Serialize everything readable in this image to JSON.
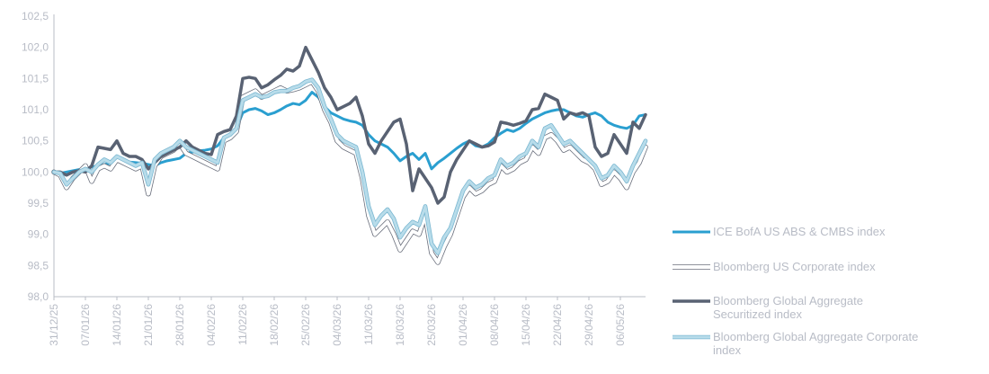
{
  "chart_data": {
    "type": "line",
    "title": "",
    "xlabel": "",
    "ylabel": "",
    "ylim": [
      98.0,
      102.5
    ],
    "yticks": [
      "98,0",
      "98,5",
      "99,0",
      "99,5",
      "100,0",
      "100,5",
      "101,0",
      "101,5",
      "102,0",
      "102,5"
    ],
    "yticks_values": [
      98.0,
      98.5,
      99.0,
      99.5,
      100.0,
      100.5,
      101.0,
      101.5,
      102.0,
      102.5
    ],
    "grid": false,
    "legend_position": "right",
    "x_tick_labels": [
      "31/12/25",
      "07/01/26",
      "14/01/26",
      "21/01/26",
      "28/01/26",
      "04/02/26",
      "11/02/26",
      "18/02/26",
      "25/02/26",
      "04/03/26",
      "11/03/26",
      "18/03/26",
      "25/03/26",
      "01/04/26",
      "08/04/26",
      "15/04/26",
      "22/04/26",
      "29/04/26",
      "06/05/26"
    ],
    "x_tick_positions": [
      0,
      5,
      10,
      15,
      20,
      25,
      30,
      35,
      40,
      45,
      50,
      55,
      60,
      65,
      70,
      75,
      80,
      85,
      90
    ],
    "x_count": 95,
    "series": [
      {
        "name": "ICE BofA US ABS & CMBS index",
        "color": "#2a9fd0",
        "outline": null,
        "width": 3,
        "values": [
          100.0,
          99.98,
          100.0,
          100.02,
          100.04,
          100.06,
          100.08,
          100.1,
          100.12,
          100.14,
          100.2,
          100.18,
          100.16,
          100.15,
          100.14,
          100.12,
          100.1,
          100.15,
          100.18,
          100.2,
          100.22,
          100.3,
          100.32,
          100.34,
          100.35,
          100.37,
          100.42,
          100.55,
          100.6,
          100.7,
          100.95,
          101.0,
          101.02,
          100.98,
          100.92,
          100.95,
          101.0,
          101.06,
          101.1,
          101.08,
          101.15,
          101.28,
          101.2,
          101.05,
          100.95,
          100.9,
          100.85,
          100.82,
          100.8,
          100.75,
          100.6,
          100.5,
          100.45,
          100.4,
          100.3,
          100.18,
          100.25,
          100.3,
          100.2,
          100.3,
          100.05,
          100.15,
          100.22,
          100.3,
          100.38,
          100.45,
          100.5,
          100.42,
          100.4,
          100.45,
          100.55,
          100.62,
          100.68,
          100.65,
          100.7,
          100.78,
          100.85,
          100.9,
          100.95,
          100.98,
          101.0,
          101.0,
          100.95,
          100.9,
          100.88,
          100.92,
          100.95,
          100.9,
          100.8,
          100.75,
          100.72,
          100.7,
          100.75,
          100.9,
          100.92
        ]
      },
      {
        "name": "Bloomberg US Corporate index",
        "color": "#ffffff",
        "outline": "#6a6f7c",
        "width": 4,
        "values": [
          100.0,
          99.95,
          99.75,
          99.9,
          100.0,
          100.1,
          99.85,
          100.05,
          100.1,
          100.05,
          100.2,
          100.15,
          100.1,
          100.05,
          100.1,
          99.65,
          100.1,
          100.25,
          100.3,
          100.35,
          100.45,
          100.3,
          100.25,
          100.2,
          100.15,
          100.1,
          100.05,
          100.5,
          100.55,
          100.65,
          101.2,
          101.25,
          101.3,
          101.2,
          101.25,
          101.3,
          101.35,
          101.3,
          101.32,
          101.35,
          101.4,
          101.45,
          101.3,
          101.0,
          100.8,
          100.5,
          100.4,
          100.35,
          100.3,
          99.9,
          99.3,
          99.0,
          99.1,
          99.2,
          99.0,
          98.75,
          98.9,
          99.05,
          99.0,
          99.3,
          98.7,
          98.55,
          98.8,
          99.0,
          99.3,
          99.6,
          99.75,
          99.65,
          99.7,
          99.8,
          99.85,
          100.1,
          100.0,
          100.05,
          100.15,
          100.2,
          100.4,
          100.3,
          100.55,
          100.6,
          100.5,
          100.35,
          100.4,
          100.3,
          100.2,
          100.15,
          100.05,
          99.8,
          99.85,
          100.0,
          99.9,
          99.75,
          100.0,
          100.15,
          100.4
        ]
      },
      {
        "name": "Bloomberg Global Aggregate Securitized index",
        "color": "#596273",
        "outline": null,
        "width": 3.5,
        "values": [
          100.0,
          100.0,
          99.95,
          100.0,
          100.02,
          100.0,
          100.1,
          100.4,
          100.38,
          100.36,
          100.5,
          100.3,
          100.25,
          100.25,
          100.2,
          100.05,
          100.15,
          100.25,
          100.3,
          100.35,
          100.4,
          100.5,
          100.4,
          100.35,
          100.3,
          100.28,
          100.6,
          100.65,
          100.68,
          100.9,
          101.5,
          101.52,
          101.5,
          101.35,
          101.4,
          101.48,
          101.55,
          101.65,
          101.62,
          101.7,
          102.0,
          101.8,
          101.6,
          101.35,
          101.2,
          101.0,
          101.05,
          101.1,
          101.2,
          100.9,
          100.45,
          100.3,
          100.5,
          100.65,
          100.8,
          100.85,
          100.45,
          99.7,
          100.05,
          99.9,
          99.75,
          99.5,
          99.6,
          100.0,
          100.2,
          100.35,
          100.5,
          100.45,
          100.4,
          100.42,
          100.48,
          100.8,
          100.78,
          100.75,
          100.78,
          100.82,
          101.0,
          101.02,
          101.25,
          101.2,
          101.15,
          100.85,
          100.95,
          100.92,
          100.95,
          100.9,
          100.4,
          100.25,
          100.3,
          100.6,
          100.45,
          100.3,
          100.8,
          100.7,
          100.92
        ]
      },
      {
        "name": "Bloomberg Global Aggregate Corporate index",
        "color": "#b8dcea",
        "outline": "#7ab7d1",
        "width": 3,
        "values": [
          100.0,
          99.98,
          99.8,
          99.9,
          100.0,
          100.05,
          100.0,
          100.12,
          100.2,
          100.15,
          100.25,
          100.2,
          100.15,
          100.1,
          100.15,
          99.8,
          100.2,
          100.3,
          100.35,
          100.4,
          100.5,
          100.4,
          100.35,
          100.3,
          100.25,
          100.2,
          100.15,
          100.55,
          100.6,
          100.7,
          101.15,
          101.2,
          101.25,
          101.2,
          101.22,
          101.28,
          101.3,
          101.3,
          101.35,
          101.38,
          101.45,
          101.48,
          101.35,
          101.05,
          100.85,
          100.6,
          100.5,
          100.45,
          100.4,
          100.0,
          99.45,
          99.15,
          99.3,
          99.4,
          99.25,
          98.95,
          99.1,
          99.2,
          99.15,
          99.45,
          98.85,
          98.7,
          98.95,
          99.1,
          99.4,
          99.7,
          99.85,
          99.75,
          99.8,
          99.9,
          99.95,
          100.2,
          100.1,
          100.15,
          100.25,
          100.3,
          100.5,
          100.4,
          100.7,
          100.75,
          100.6,
          100.45,
          100.5,
          100.4,
          100.3,
          100.2,
          100.1,
          99.9,
          99.95,
          100.1,
          100.0,
          99.85,
          100.1,
          100.3,
          100.5
        ]
      }
    ]
  }
}
